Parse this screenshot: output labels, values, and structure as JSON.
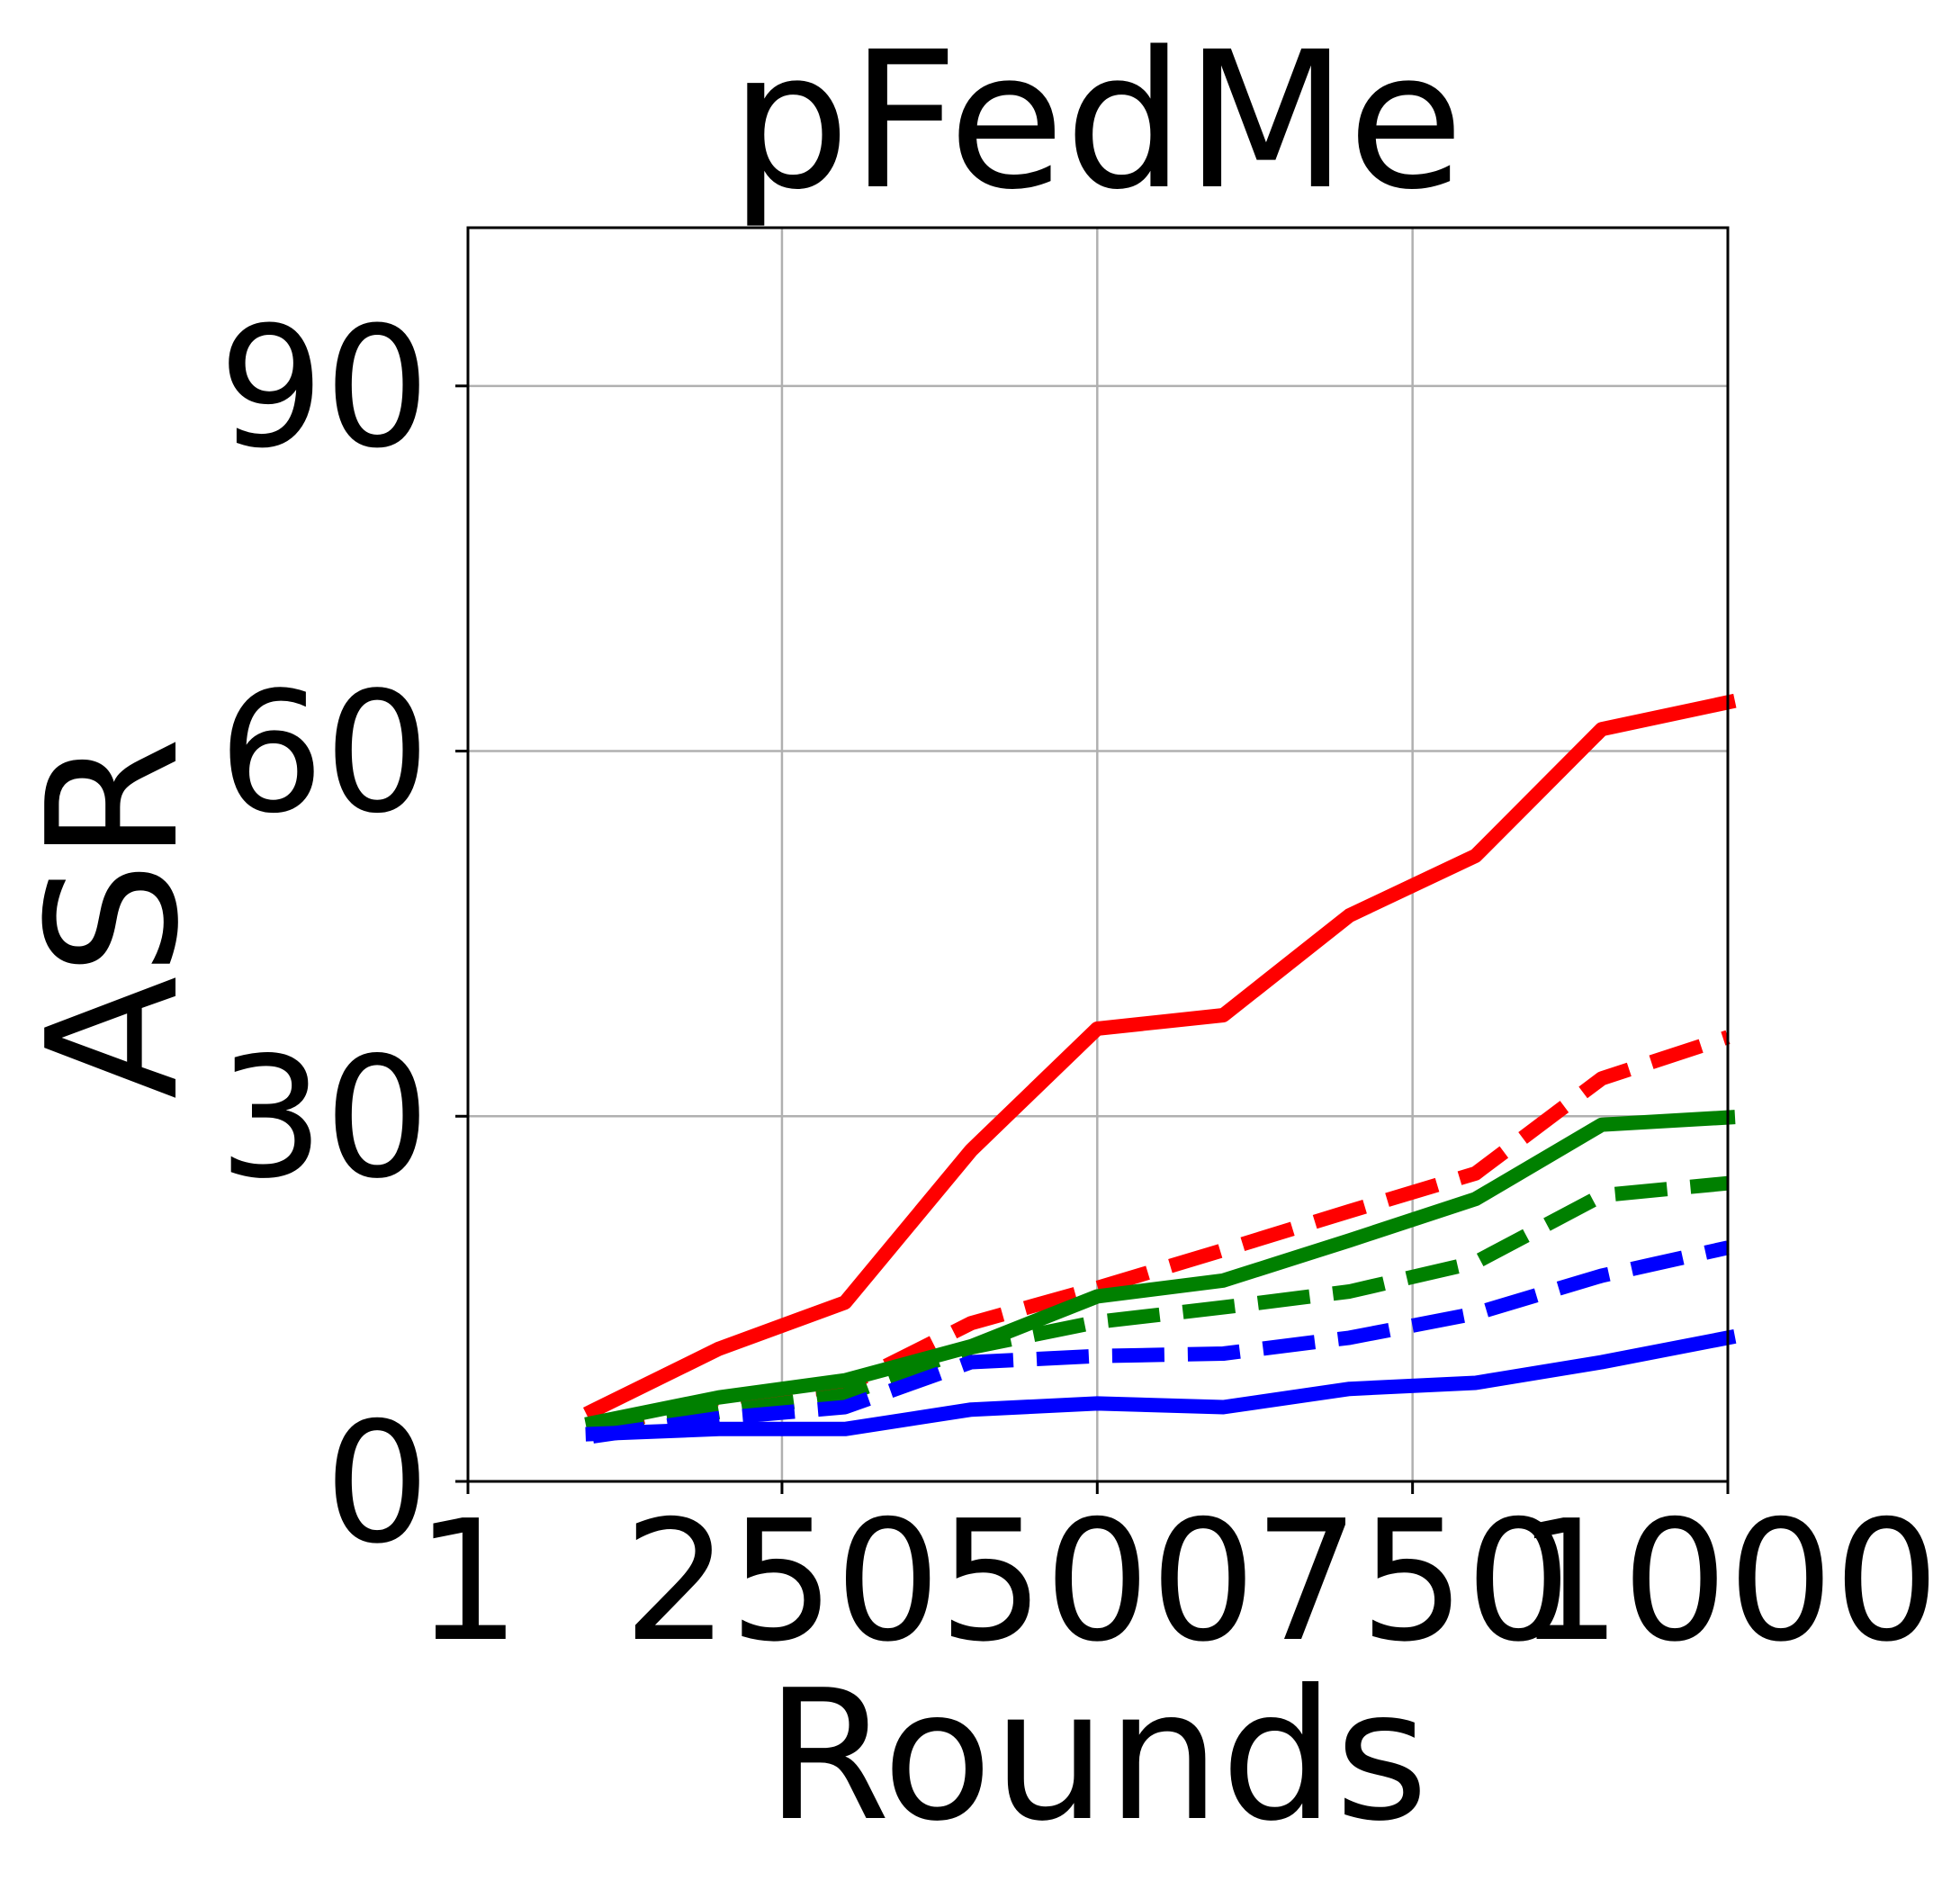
{
  "chart_data": {
    "type": "line",
    "title": "pFedMe",
    "xlabel": "Rounds",
    "ylabel": "ASR",
    "xlim": [
      1,
      1000
    ],
    "ylim": [
      0,
      103
    ],
    "x_ticks": [
      1,
      250,
      500,
      750,
      1000
    ],
    "x_tick_labels": [
      "1",
      "250",
      "500",
      "750",
      "1000"
    ],
    "y_ticks": [
      0,
      30,
      60,
      90
    ],
    "y_tick_labels": [
      "0",
      "30",
      "60",
      "90"
    ],
    "grid": true,
    "legend": "none",
    "x": [
      100,
      200,
      300,
      400,
      500,
      600,
      700,
      800,
      900,
      1000
    ],
    "series": [
      {
        "color": "#ff0000",
        "linestyle": "solid",
        "values": [
          5.8,
          10.9,
          14.7,
          27.2,
          37.2,
          38.3,
          46.5,
          51.4,
          61.8,
          64.0
        ]
      },
      {
        "color": "#ff0000",
        "linestyle": "dashed",
        "values": [
          4.3,
          6.8,
          7.8,
          13.0,
          15.9,
          19.0,
          22.2,
          25.3,
          33.1,
          36.5
        ]
      },
      {
        "color": "#008000",
        "linestyle": "solid",
        "values": [
          4.8,
          6.9,
          8.3,
          11.1,
          15.2,
          16.5,
          19.8,
          23.2,
          29.3,
          29.9
        ]
      },
      {
        "color": "#008000",
        "linestyle": "dashed",
        "values": [
          4.0,
          5.7,
          7.1,
          11.0,
          13.1,
          14.3,
          15.6,
          18.0,
          23.5,
          24.5
        ]
      },
      {
        "color": "#0000ff",
        "linestyle": "solid",
        "values": [
          3.9,
          4.3,
          4.3,
          5.9,
          6.4,
          6.1,
          7.6,
          8.1,
          9.8,
          11.8
        ]
      },
      {
        "color": "#0000ff",
        "linestyle": "dashed",
        "values": [
          3.7,
          5.2,
          6.1,
          9.8,
          10.3,
          10.5,
          11.8,
          13.8,
          16.9,
          19.2
        ]
      }
    ]
  }
}
